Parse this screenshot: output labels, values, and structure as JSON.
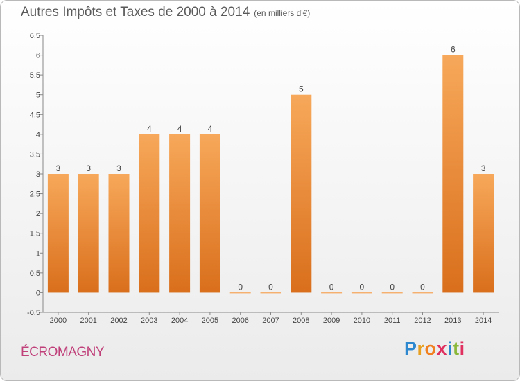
{
  "header": {
    "title": "Autres Impôts et Taxes de 2000 à 2014",
    "subtitle": "(en milliers d'€)"
  },
  "footer": {
    "commune": "ÉCROMAGNY",
    "logo": {
      "letters": [
        "P",
        "r",
        "o",
        "x",
        "i",
        "t",
        "i"
      ],
      "colors": [
        "#2e88d0",
        "#e8a020",
        "#f08020",
        "#e03060",
        "#2e88d0",
        "#8ab83a",
        "#e03060"
      ]
    }
  },
  "chart_data": {
    "type": "bar",
    "categories": [
      "2000",
      "2001",
      "2002",
      "2003",
      "2004",
      "2005",
      "2006",
      "2007",
      "2008",
      "2009",
      "2010",
      "2011",
      "2012",
      "2013",
      "2014"
    ],
    "values": [
      3,
      3,
      3,
      4,
      4,
      4,
      0,
      0,
      5,
      0,
      0,
      0,
      0,
      6,
      3
    ],
    "data_labels": [
      "3",
      "3",
      "3",
      "4",
      "4",
      "4",
      "0",
      "0",
      "5",
      "0",
      "0",
      "0",
      "0",
      "6",
      "3"
    ],
    "ylim": [
      -0.5,
      6.5
    ],
    "yticks": [
      "-0.5",
      "0",
      "0.5",
      "1",
      "1.5",
      "2",
      "2.5",
      "3",
      "3.5",
      "4",
      "4.5",
      "5",
      "5.5",
      "6",
      "6.5"
    ],
    "ytick_values": [
      -0.5,
      0,
      0.5,
      1,
      1.5,
      2,
      2.5,
      3,
      3.5,
      4,
      4.5,
      5,
      5.5,
      6,
      6.5
    ],
    "xlabel": "",
    "ylabel": "",
    "grid": false,
    "colors": {
      "bar_light": "#f7a85a",
      "bar_dark": "#d96f1c",
      "zero_bar": "#f5b070"
    }
  }
}
